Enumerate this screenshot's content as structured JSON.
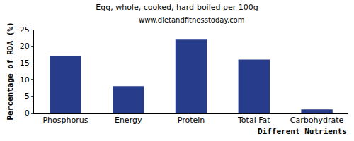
{
  "chart_data": {
    "type": "bar",
    "title": "Egg, whole, cooked, hard-boiled per 100g",
    "subtitle": "www.dietandfitnesstoday.com",
    "x_label": "Different Nutrients",
    "y_label": "Percentage of RDA (%)",
    "categories": [
      "Phosphorus",
      "Energy",
      "Protein",
      "Total Fat",
      "Carbohydrate"
    ],
    "values": [
      17,
      8,
      22,
      16,
      1
    ],
    "color": "#283c8c",
    "ylim": [
      0,
      25
    ],
    "yticks": [
      0,
      5,
      10,
      15,
      20,
      25
    ],
    "grid": false
  }
}
